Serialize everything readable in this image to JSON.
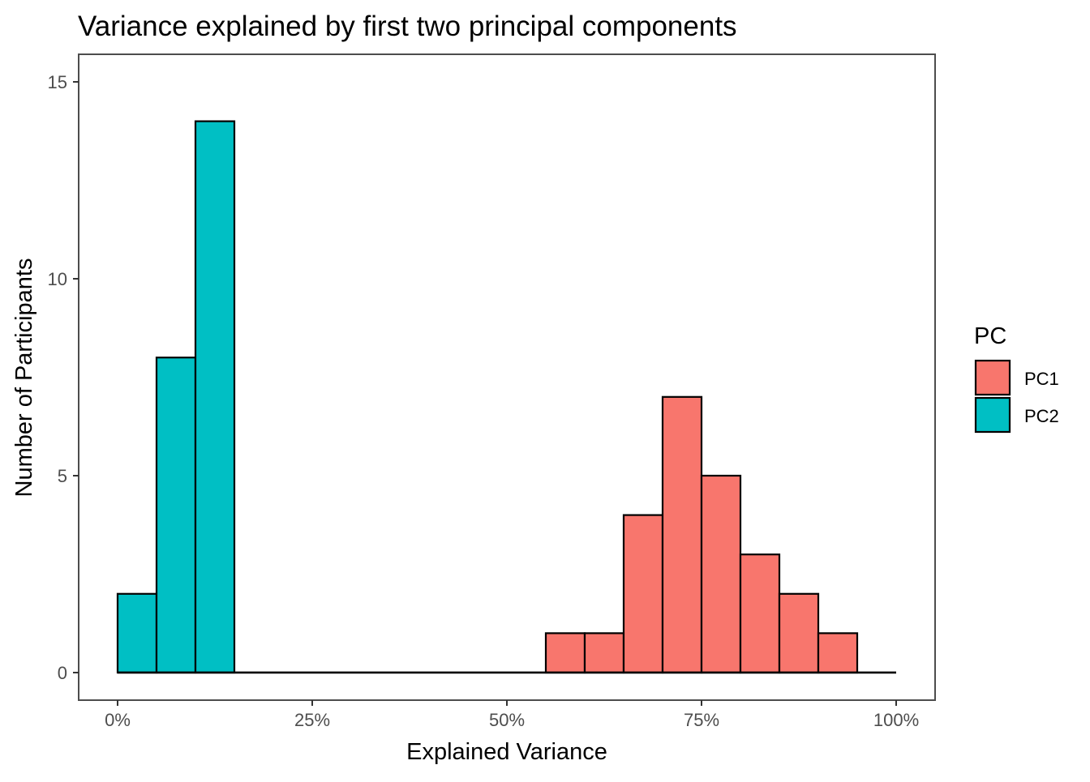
{
  "chart_data": {
    "type": "bar",
    "subtype": "histogram",
    "title": "Variance explained by first two principal components",
    "xlabel": "Explained Variance",
    "ylabel": "Number of Participants",
    "xlim": [
      -0.05,
      1.05
    ],
    "ylim": [
      -0.7,
      15.7
    ],
    "bin_width": 0.05,
    "x_ticks": [
      {
        "value": 0,
        "label": "0%"
      },
      {
        "value": 0.25,
        "label": "25%"
      },
      {
        "value": 0.5,
        "label": "50%"
      },
      {
        "value": 0.75,
        "label": "75%"
      },
      {
        "value": 1.0,
        "label": "100%"
      }
    ],
    "y_ticks": [
      {
        "value": 0,
        "label": "0"
      },
      {
        "value": 5,
        "label": "5"
      },
      {
        "value": 10,
        "label": "10"
      },
      {
        "value": 15,
        "label": "15"
      }
    ],
    "grid": false,
    "legend": {
      "title": "PC",
      "position": "right"
    },
    "series": [
      {
        "name": "PC1",
        "color": "#F8766D",
        "bins": [
          {
            "start": 0.55,
            "end": 0.6,
            "count": 1
          },
          {
            "start": 0.6,
            "end": 0.65,
            "count": 1
          },
          {
            "start": 0.65,
            "end": 0.7,
            "count": 4
          },
          {
            "start": 0.7,
            "end": 0.75,
            "count": 7
          },
          {
            "start": 0.75,
            "end": 0.8,
            "count": 5
          },
          {
            "start": 0.8,
            "end": 0.85,
            "count": 3
          },
          {
            "start": 0.85,
            "end": 0.9,
            "count": 2
          },
          {
            "start": 0.9,
            "end": 0.95,
            "count": 1
          }
        ]
      },
      {
        "name": "PC2",
        "color": "#00BFC4",
        "bins": [
          {
            "start": 0.0,
            "end": 0.05,
            "count": 2
          },
          {
            "start": 0.05,
            "end": 0.1,
            "count": 8
          },
          {
            "start": 0.1,
            "end": 0.15,
            "count": 14
          }
        ]
      }
    ],
    "baseline": {
      "from": 0,
      "to": 1.0,
      "count": 0
    }
  }
}
